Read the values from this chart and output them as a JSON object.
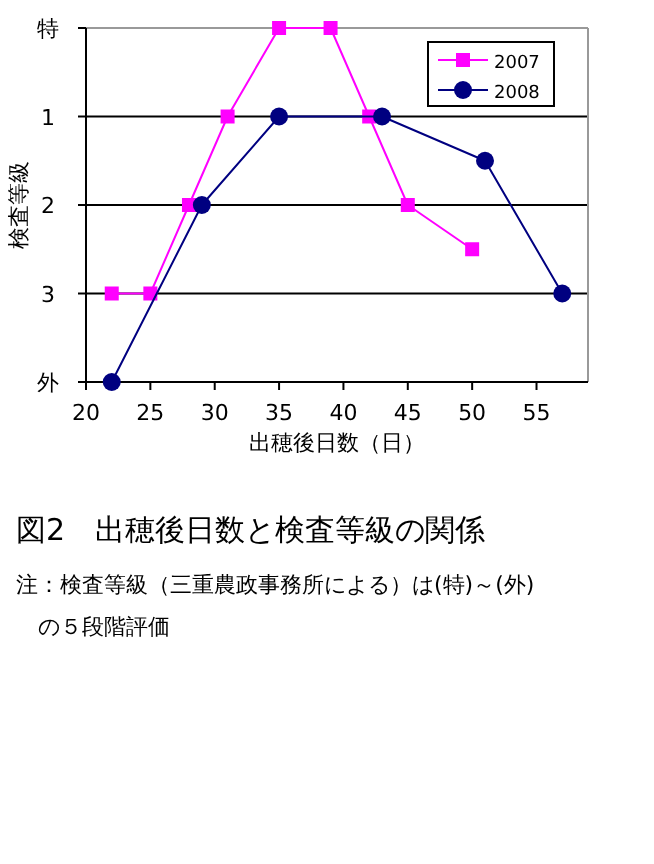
{
  "chart_data": {
    "type": "line",
    "title": "図2　出穂後日数と検査等級の関係",
    "xlabel": "出穂後日数（日）",
    "ylabel": "検査等級",
    "annotations": [
      "注：検査等級（三重農政事務所による）は(特)～(外)",
      "　の５段階評価"
    ],
    "series": [
      {
        "name": "2007",
        "color": "#ff00ff",
        "marker": "square",
        "x": [
          22,
          25,
          28,
          31,
          35,
          39,
          42,
          45,
          50
        ],
        "values": [
          3,
          3,
          2,
          1,
          0,
          0,
          1,
          2,
          2.5
        ]
      },
      {
        "name": "2008",
        "color": "#000080",
        "marker": "circle",
        "x": [
          22,
          29,
          35,
          43,
          51,
          57
        ],
        "values": [
          4,
          2,
          1,
          1,
          1.5,
          3
        ]
      }
    ],
    "xlim": [
      20,
      59
    ],
    "xticks": [
      20,
      25,
      30,
      35,
      40,
      45,
      50,
      55
    ],
    "ylim": [
      4,
      0
    ],
    "yticks": [
      {
        "value": 0,
        "label": "特"
      },
      {
        "value": 1,
        "label": "1"
      },
      {
        "value": 2,
        "label": "2"
      },
      {
        "value": 3,
        "label": "3"
      },
      {
        "value": 4,
        "label": "外"
      }
    ],
    "grid": "y",
    "legend": "top right"
  }
}
